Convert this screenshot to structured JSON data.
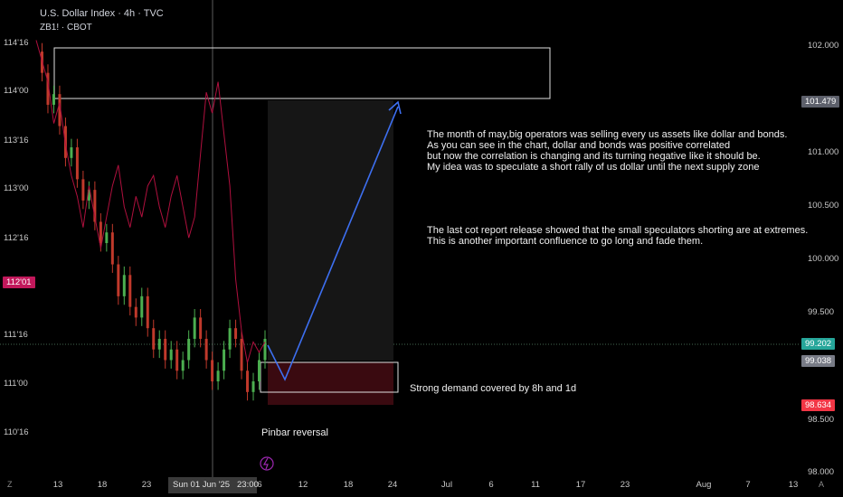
{
  "header": {
    "title": "U.S. Dollar Index · 4h · TVC",
    "subtitle": "ZB1! · CBOT"
  },
  "annotations": {
    "para1": [
      "The month of may,big operators was selling every us assets like dollar and bonds.",
      "As you can see in the chart, dollar and bonds was positive correlated",
      "but now the correlation is changing and its turning negative like it should be.",
      "My idea was to speculate a short rally of us dollar until the next supply zone"
    ],
    "para2": [
      "The last cot report release showed that the small speculators shorting are at extremes.",
      "This is another important confluence to go long and fade them."
    ],
    "demand": "Strong demand covered by 8h and 1d",
    "pinbar": "Pinbar reversal"
  },
  "left_axis": {
    "ticks": [
      "114'16",
      "114'00",
      "113'16",
      "113'00",
      "112'16",
      "111'16",
      "111'00",
      "110'16"
    ],
    "badge": "112'01",
    "badge_color": "#c2185b"
  },
  "right_axis": {
    "ticks": [
      "102.000",
      "101.000",
      "100.500",
      "100.000",
      "99.500",
      "98.500",
      "98.000"
    ],
    "badges": [
      {
        "label": "101.479",
        "bg": "#5d606b"
      },
      {
        "label": "99.202",
        "bg": "#26a69a"
      },
      {
        "label": "99.038",
        "bg": "#787b86"
      },
      {
        "label": "98.634",
        "bg": "#f23645"
      }
    ]
  },
  "x_axis": {
    "ticks": [
      "13",
      "18",
      "23",
      "6",
      "12",
      "18",
      "24",
      "Jul",
      "6",
      "11",
      "17",
      "23",
      "Aug",
      "7",
      "13"
    ],
    "crosshair_label": "Sun 01 Jun '25   23:00"
  },
  "corner": {
    "left": "Z",
    "right": "A"
  },
  "colors": {
    "bg": "#000000",
    "up": "#4caf50",
    "down": "#c0392b",
    "overlay": "#b0103e",
    "arrow": "#3d6ff0",
    "zone_stroke": "#e0e0e0",
    "demand_fill": "#3a0a10"
  },
  "chart_data": {
    "type": "line",
    "title": "U.S. Dollar Index · 4h · TVC",
    "series": [
      {
        "name": "U.S. Dollar Index · 4h · TVC",
        "style": "candlestick",
        "axis": "right",
        "y": [
          101.9,
          101.7,
          101.4,
          101.5,
          101.2,
          100.9,
          101.0,
          100.7,
          100.5,
          100.6,
          100.3,
          100.1,
          100.2,
          99.9,
          99.6,
          99.8,
          99.5,
          99.4,
          99.6,
          99.3,
          99.1,
          99.2,
          99.0,
          99.1,
          98.9,
          99.0,
          99.2,
          99.4,
          99.2,
          99.0,
          98.8,
          98.9,
          99.1,
          99.3,
          99.2,
          98.9,
          98.7,
          98.8,
          99.0,
          99.2
        ]
      },
      {
        "name": "ZB1! · CBOT",
        "style": "line",
        "axis": "left",
        "y": [
          114.3,
          114.1,
          113.9,
          113.5,
          113.7,
          113.3,
          113.0,
          112.8,
          112.5,
          112.9,
          112.6,
          112.3,
          112.6,
          112.9,
          113.1,
          112.7,
          112.5,
          112.8,
          112.6,
          112.9,
          113.0,
          112.7,
          112.5,
          112.8,
          113.0,
          112.7,
          112.4,
          112.6,
          113.2,
          113.8,
          113.6,
          113.9,
          113.4,
          112.9,
          112.0,
          111.5,
          111.2,
          111.4,
          111.3,
          111.4
        ]
      }
    ],
    "zones": {
      "supply": [
        101.479,
        102.0
      ],
      "demand": [
        98.634,
        99.038
      ]
    },
    "projection": {
      "from": 99.038,
      "to": 101.479
    },
    "ylim_right": [
      97.9,
      102.3
    ],
    "ylim_left": [
      110.1,
      114.6
    ]
  }
}
